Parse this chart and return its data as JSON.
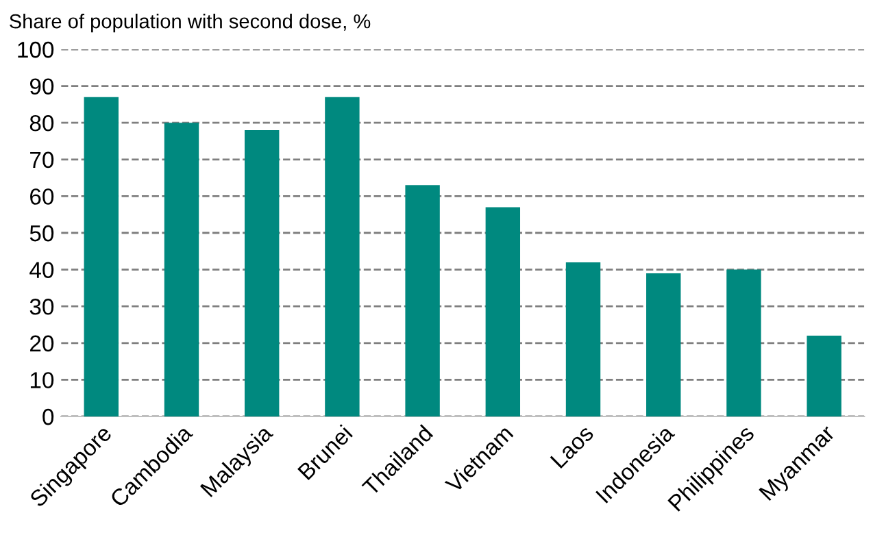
{
  "chart_data": {
    "type": "bar",
    "title": "Share of population with second dose, %",
    "categories": [
      "Singapore",
      "Cambodia",
      "Malaysia",
      "Brunei",
      "Thailand",
      "Vietnam",
      "Laos",
      "Indonesia",
      "Philippines",
      "Myanmar"
    ],
    "values": [
      87,
      80,
      78,
      87,
      63,
      57,
      42,
      39,
      40,
      22
    ],
    "color": "#00897f",
    "ylim": [
      0,
      100
    ],
    "yticks": [
      0,
      10,
      20,
      30,
      40,
      50,
      60,
      70,
      80,
      90,
      100
    ],
    "grid": "y"
  }
}
